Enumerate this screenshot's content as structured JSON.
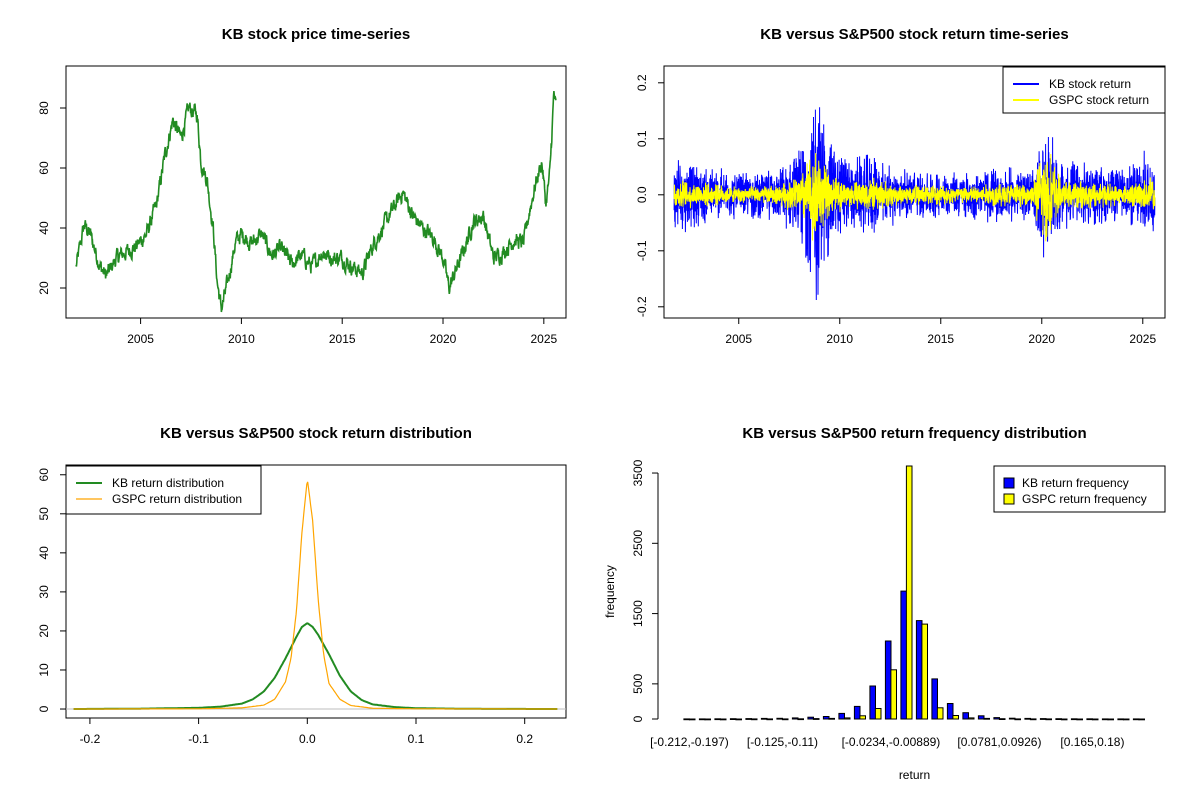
{
  "chart_data": [
    {
      "type": "line",
      "title": "KB stock price time-series",
      "xlabel": "",
      "ylabel": "",
      "xlim": [
        2001.3,
        2026.1
      ],
      "ylim": [
        10,
        94
      ],
      "xticks": [
        2005,
        2010,
        2015,
        2020,
        2025
      ],
      "yticks": [
        20,
        40,
        60,
        80
      ],
      "grid": false,
      "colors": {
        "KB": "#228b22"
      },
      "series": [
        {
          "x": [
            2001.8,
            2002.2,
            2002.5,
            2003.0,
            2003.3,
            2003.8,
            2004.3,
            2004.8,
            2005.3,
            2005.8,
            2006.2,
            2006.6,
            2007.0,
            2007.4,
            2007.8,
            2008.0,
            2008.3,
            2008.6,
            2008.8,
            2009.0,
            2009.3,
            2009.7,
            2010.0,
            2010.5,
            2011.0,
            2011.5,
            2012.0,
            2012.5,
            2013.0,
            2013.5,
            2014.0,
            2014.5,
            2015.0,
            2015.5,
            2016.0,
            2016.5,
            2017.0,
            2017.5,
            2018.0,
            2018.5,
            2019.0,
            2019.5,
            2020.0,
            2020.3,
            2020.7,
            2021.0,
            2021.5,
            2022.0,
            2022.5,
            2023.0,
            2023.5,
            2024.0,
            2024.3,
            2024.6,
            2024.9,
            2025.1,
            2025.3,
            2025.5,
            2025.6
          ],
          "y": [
            27,
            41,
            38,
            27,
            24,
            30,
            32,
            34,
            38,
            48,
            64,
            76,
            70,
            80,
            78,
            62,
            56,
            40,
            22,
            13,
            21,
            35,
            38,
            35,
            38,
            31,
            33,
            28,
            31,
            27,
            32,
            30,
            30,
            27,
            25,
            34,
            40,
            46,
            52,
            44,
            40,
            37,
            30,
            20,
            27,
            32,
            42,
            44,
            30,
            32,
            36,
            35,
            46,
            55,
            62,
            48,
            58,
            85,
            80
          ]
        }
      ]
    },
    {
      "type": "line",
      "title": "KB versus S&P500 stock return time-series",
      "xlabel": "",
      "ylabel": "",
      "xlim": [
        2001.3,
        2026.1
      ],
      "ylim": [
        -0.22,
        0.23
      ],
      "xticks": [
        2005,
        2010,
        2015,
        2020,
        2025
      ],
      "yticks": [
        -0.2,
        -0.1,
        0.0,
        0.1,
        0.2
      ],
      "legend": "top-right",
      "colors": {
        "KB": "#0000ff",
        "GSPC": "#ffff00"
      },
      "series": [
        {
          "name": "KB stock return",
          "x": [
            2001.8,
            2003.0,
            2005.0,
            2007.0,
            2008.0,
            2008.8,
            2009.0,
            2009.5,
            2010.5,
            2011.5,
            2013.0,
            2015.0,
            2016.5,
            2018.0,
            2019.5,
            2020.2,
            2021.0,
            2022.5,
            2024.0,
            2025.0,
            2025.6
          ],
          "amp": [
            0.08,
            0.06,
            0.045,
            0.05,
            0.09,
            0.22,
            0.2,
            0.12,
            0.07,
            0.08,
            0.05,
            0.045,
            0.045,
            0.055,
            0.05,
            0.13,
            0.07,
            0.06,
            0.05,
            0.08,
            0.09
          ]
        },
        {
          "name": "GSPC stock return",
          "x": [
            2001.8,
            2003.0,
            2005.0,
            2007.0,
            2008.0,
            2008.8,
            2009.0,
            2009.5,
            2010.5,
            2011.5,
            2013.0,
            2015.0,
            2016.5,
            2018.0,
            2019.5,
            2020.2,
            2021.0,
            2022.5,
            2024.0,
            2025.0,
            2025.6
          ],
          "amp": [
            0.03,
            0.025,
            0.015,
            0.02,
            0.04,
            0.1,
            0.08,
            0.04,
            0.025,
            0.035,
            0.02,
            0.02,
            0.018,
            0.025,
            0.02,
            0.11,
            0.025,
            0.03,
            0.018,
            0.03,
            0.04
          ]
        }
      ]
    },
    {
      "type": "line",
      "title": "KB versus S&P500 stock return distribution",
      "xlabel": "",
      "ylabel": "",
      "xlim": [
        -0.222,
        0.238
      ],
      "ylim": [
        -2.3,
        62.5
      ],
      "xticks": [
        -0.2,
        -0.1,
        0.0,
        0.1,
        0.2
      ],
      "yticks": [
        0,
        10,
        20,
        30,
        40,
        50,
        60
      ],
      "legend": "top-left",
      "colors": {
        "KB": "#228b22",
        "GSPC": "#ffa500"
      },
      "series": [
        {
          "name": "KB return distribution",
          "x": [
            -0.215,
            -0.15,
            -0.1,
            -0.08,
            -0.06,
            -0.05,
            -0.04,
            -0.03,
            -0.02,
            -0.01,
            -0.005,
            0.0,
            0.005,
            0.01,
            0.02,
            0.03,
            0.04,
            0.05,
            0.06,
            0.08,
            0.1,
            0.15,
            0.23
          ],
          "y": [
            0,
            0.1,
            0.3,
            0.6,
            1.4,
            2.5,
            4.5,
            8,
            13,
            18.5,
            21,
            22,
            21,
            19,
            14,
            8.5,
            4.5,
            2.3,
            1.2,
            0.5,
            0.2,
            0.05,
            0
          ]
        },
        {
          "name": "GSPC return distribution",
          "x": [
            -0.215,
            -0.1,
            -0.06,
            -0.04,
            -0.03,
            -0.02,
            -0.015,
            -0.01,
            -0.005,
            0.0,
            0.005,
            0.01,
            0.015,
            0.02,
            0.03,
            0.04,
            0.06,
            0.1,
            0.23
          ],
          "y": [
            0,
            0.05,
            0.3,
            1,
            2.5,
            7,
            13,
            25,
            45,
            59,
            48,
            28,
            14,
            6.5,
            2.5,
            0.9,
            0.2,
            0.05,
            0
          ]
        }
      ]
    },
    {
      "type": "bar",
      "title": "KB versus S&P500 return frequency distribution",
      "xlabel": "return",
      "ylabel": "frequency",
      "ylim": [
        0,
        3600
      ],
      "yticks": [
        0,
        500,
        1500,
        2500,
        3500
      ],
      "legend": "top-right",
      "colors": {
        "KB": "#0000ff",
        "GSPC": "#ffff00"
      },
      "category_labels_shown": [
        "[-0.212,-0.197)",
        "[-0.125,-0.11)",
        "[-0.0234,-0.00889)",
        "[0.0781,0.0926)",
        "[0.165,0.18)"
      ],
      "category_label_positions": [
        0,
        6,
        13,
        20,
        26
      ],
      "bins": 30,
      "series": [
        {
          "name": "KB return frequency",
          "values": [
            2,
            2,
            3,
            4,
            5,
            8,
            10,
            15,
            25,
            35,
            80,
            180,
            470,
            1110,
            1820,
            1400,
            570,
            220,
            90,
            45,
            20,
            12,
            8,
            5,
            4,
            3,
            3,
            2,
            2,
            2
          ]
        },
        {
          "name": "GSPC return frequency",
          "values": [
            0,
            0,
            0,
            0,
            1,
            1,
            2,
            3,
            5,
            8,
            15,
            45,
            150,
            700,
            3600,
            1350,
            160,
            50,
            15,
            8,
            4,
            2,
            1,
            1,
            0,
            0,
            0,
            0,
            0,
            0
          ]
        }
      ]
    }
  ]
}
